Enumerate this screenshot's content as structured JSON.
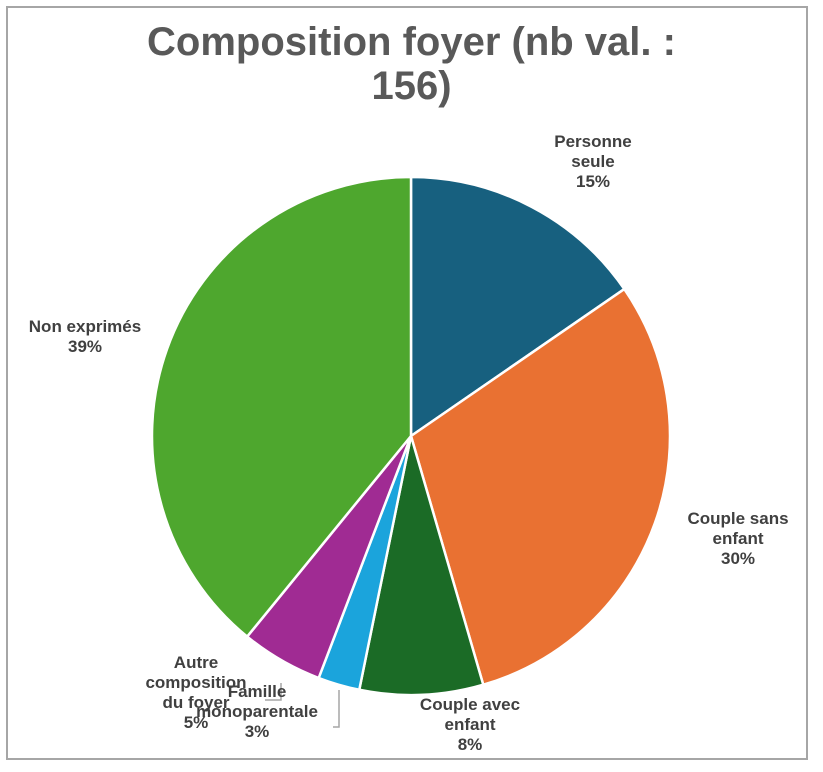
{
  "chart_data": {
    "type": "pie",
    "title_lines": [
      "Composition foyer (nb val. :",
      "156)"
    ],
    "slices": [
      {
        "label_lines": [
          "Personne",
          "seule"
        ],
        "percent_label": "15%",
        "value": 15.4,
        "color": "#17607f"
      },
      {
        "label_lines": [
          "Couple sans",
          "enfant"
        ],
        "percent_label": "30%",
        "value": 30.1,
        "color": "#e97132"
      },
      {
        "label_lines": [
          "Couple avec",
          "enfant"
        ],
        "percent_label": "8%",
        "value": 7.7,
        "color": "#1b6b26"
      },
      {
        "label_lines": [
          "Famille",
          "monoparentale"
        ],
        "percent_label": "3%",
        "value": 2.6,
        "color": "#1ba4dc"
      },
      {
        "label_lines": [
          "Autre",
          "composition",
          "du foyer"
        ],
        "percent_label": "5%",
        "value": 5.1,
        "color": "#a02b93"
      },
      {
        "label_lines": [
          "Non exprimés"
        ],
        "percent_label": "39%",
        "value": 39.1,
        "color": "#4ea72e"
      }
    ]
  }
}
